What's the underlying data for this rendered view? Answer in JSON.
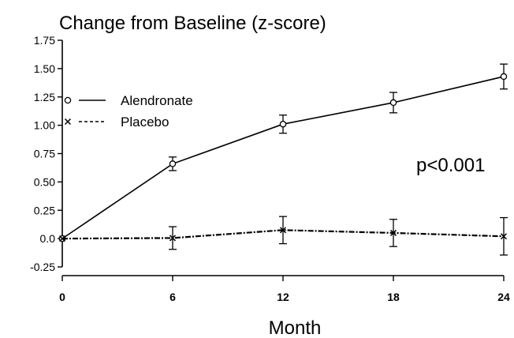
{
  "chart_data": {
    "type": "line",
    "title": "Change from Baseline (z-score)",
    "xlabel": "Month",
    "ylabel": "",
    "x": [
      0,
      6,
      12,
      18,
      24
    ],
    "x_ticks": [
      "0",
      "6",
      "12",
      "18",
      "24"
    ],
    "xlim": [
      0,
      24
    ],
    "y_ticks": [
      "1.75",
      "1.50",
      "1.25",
      "1.00",
      "0.75",
      "0.50",
      "0.25",
      "0.0",
      "-0.25"
    ],
    "y_tick_values": [
      1.75,
      1.5,
      1.25,
      1.0,
      0.75,
      0.5,
      0.25,
      0.0,
      -0.25
    ],
    "ylim": [
      -0.25,
      1.75
    ],
    "grid": false,
    "legend_position": "top-left",
    "series": [
      {
        "name": "Alendronate",
        "marker": "circle",
        "line_style": "solid",
        "x": [
          0,
          6,
          12,
          18,
          24
        ],
        "values": [
          0.0,
          0.66,
          1.01,
          1.2,
          1.43
        ],
        "error": [
          0.0,
          0.06,
          0.08,
          0.09,
          0.11
        ]
      },
      {
        "name": "Placebo",
        "marker": "x",
        "line_style": "dashed",
        "x": [
          0,
          6,
          12,
          18,
          24
        ],
        "values": [
          0.0,
          0.005,
          0.075,
          0.05,
          0.02
        ],
        "error": [
          0.0,
          0.1,
          0.12,
          0.12,
          0.165
        ]
      }
    ],
    "annotations": [
      {
        "text": "p<0.001"
      }
    ]
  }
}
